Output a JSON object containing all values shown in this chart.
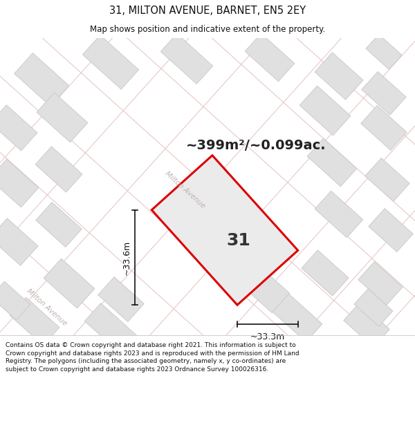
{
  "title_line1": "31, MILTON AVENUE, BARNET, EN5 2EY",
  "title_line2": "Map shows position and indicative extent of the property.",
  "area_label": "~399m²/~0.099ac.",
  "property_number": "31",
  "dim_width": "~33.3m",
  "dim_height": "~33.6m",
  "street_label1": "Milton Avenue",
  "street_label2": "Milton Avenue",
  "footer": "Contains OS data © Crown copyright and database right 2021. This information is subject to Crown copyright and database rights 2023 and is reproduced with the permission of HM Land Registry. The polygons (including the associated geometry, namely x, y co-ordinates) are subject to Crown copyright and database rights 2023 Ordnance Survey 100026316.",
  "map_bg": "#f5f5f5",
  "block_color": "#e0e0e0",
  "block_edge_color": "#cccccc",
  "road_line_color": "#e8c8c8",
  "plot_fill": "#ebebeb",
  "plot_edge": "#dd0000",
  "dim_line_color": "#111111",
  "title_color": "#111111",
  "street_text_color": "#c0b0b0",
  "footer_bg": "#ffffff",
  "title_fontsize": 10.5,
  "subtitle_fontsize": 8.5,
  "area_fontsize": 14,
  "num_fontsize": 18,
  "street_fontsize": 7.5,
  "footer_fontsize": 6.5
}
